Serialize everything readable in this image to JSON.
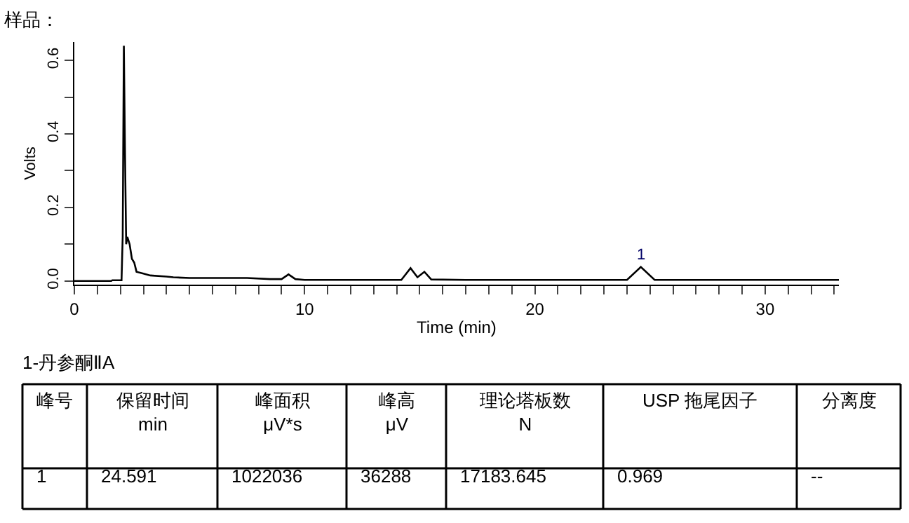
{
  "chart_data": {
    "type": "line",
    "title": "样品：",
    "xlabel": "Time (min)",
    "ylabel": "Volts",
    "x": [
      0,
      1.6,
      1.65,
      2.05,
      2.1,
      2.15,
      2.2,
      2.25,
      2.3,
      2.4,
      2.5,
      2.6,
      2.7,
      3.0,
      3.3,
      4.0,
      4.3,
      5.0,
      6.0,
      7.5,
      8.5,
      9.0,
      9.3,
      9.6,
      10.0,
      14.2,
      14.6,
      14.9,
      15.2,
      15.5,
      17.0,
      24.0,
      24.6,
      25.2,
      33.2
    ],
    "series": [
      {
        "color": "#000000",
        "values": [
          0.0,
          0.0,
          0.002,
          0.002,
          0.12,
          0.64,
          0.35,
          0.1,
          0.12,
          0.1,
          0.06,
          0.05,
          0.025,
          0.02,
          0.015,
          0.012,
          0.01,
          0.008,
          0.008,
          0.008,
          0.005,
          0.005,
          0.018,
          0.005,
          0.003,
          0.003,
          0.035,
          0.01,
          0.025,
          0.004,
          0.003,
          0.003,
          0.038,
          0.003,
          0.003
        ]
      }
    ],
    "xlim": [
      0,
      33.2
    ],
    "ylim": [
      -0.01,
      0.65
    ],
    "xticks": [
      0,
      {
        "value": 1,
        "label": null
      },
      {
        "value": 2,
        "label": null
      },
      {
        "value": 3,
        "label": null
      },
      {
        "value": 4,
        "label": null
      },
      {
        "value": 5,
        "label": null
      },
      {
        "value": 6,
        "label": null
      },
      {
        "value": 7,
        "label": null
      },
      {
        "value": 8,
        "label": null
      },
      {
        "value": 9,
        "label": null
      },
      10,
      {
        "value": 11,
        "label": null
      },
      {
        "value": 12,
        "label": null
      },
      {
        "value": 13,
        "label": null
      },
      {
        "value": 14,
        "label": null
      },
      {
        "value": 15,
        "label": null
      },
      {
        "value": 16,
        "label": null
      },
      {
        "value": 17,
        "label": null
      },
      {
        "value": 18,
        "label": null
      },
      {
        "value": 19,
        "label": null
      },
      20,
      {
        "value": 21,
        "label": null
      },
      {
        "value": 22,
        "label": null
      },
      {
        "value": 23,
        "label": null
      },
      {
        "value": 24,
        "label": null
      },
      {
        "value": 25,
        "label": null
      },
      {
        "value": 26,
        "label": null
      },
      {
        "value": 27,
        "label": null
      },
      {
        "value": 28,
        "label": null
      },
      {
        "value": 29,
        "label": null
      },
      30,
      {
        "value": 31,
        "label": null
      },
      {
        "value": 32,
        "label": null
      },
      {
        "value": 33,
        "label": null
      }
    ],
    "yticks": [
      {
        "value": 0,
        "label": "0.0"
      },
      {
        "value": 0.1,
        "label": null
      },
      {
        "value": 0.2,
        "label": "0.2"
      },
      {
        "value": 0.3,
        "label": null
      },
      {
        "value": 0.4,
        "label": "0.4"
      },
      {
        "value": 0.5,
        "label": null
      },
      {
        "value": 0.6,
        "label": "0.6"
      }
    ],
    "marker": "none",
    "line_style": "solid",
    "annotations": [
      {
        "text": "1",
        "x": 24.591,
        "y": 0.038
      },
      "1-丹参酮ⅡA",
      "峰号",
      "保留时间\nmin",
      "峰面积\nμV*s",
      "峰高\nμV",
      "理论塔板数\nN",
      "USP 拖尾因子",
      "分离度",
      "1",
      "24.591",
      "1022036",
      "36288",
      "17183.645",
      "0.969",
      "--"
    ]
  }
}
